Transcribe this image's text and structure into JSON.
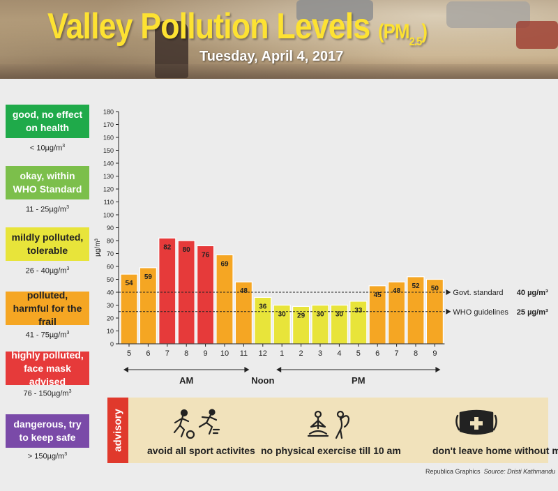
{
  "header": {
    "title": "Valley Pollution Levels",
    "title_pm": "(PM",
    "title_sub": "2.5",
    "title_close": ")",
    "date": "Tuesday, April 4, 2017"
  },
  "legend": [
    {
      "label": "good, no effect on health",
      "range": "< 10µg/m",
      "color": "#1faa4a"
    },
    {
      "label": "okay, within WHO Standard",
      "range": "11 - 25µg/m",
      "color": "#7cbf4b"
    },
    {
      "label": "mildly polluted, tolerable",
      "range": "26 - 40µg/m",
      "color": "#e8e43a"
    },
    {
      "label": "polluted, harmful for the frail",
      "range": "41 - 75µg/m",
      "color": "#f5a623"
    },
    {
      "label": "highly polluted, face mask advised",
      "range": "76 - 150µg/m",
      "color": "#e63a3a"
    },
    {
      "label": "dangerous, try to keep safe",
      "range": "> 150µg/m",
      "color": "#7a4aa8"
    }
  ],
  "legend_unit_sup": "3",
  "chart_data": {
    "type": "bar",
    "categories": [
      "5",
      "6",
      "7",
      "8",
      "9",
      "10",
      "11",
      "12",
      "1",
      "2",
      "3",
      "4",
      "5",
      "6",
      "7",
      "8",
      "9"
    ],
    "values": [
      54,
      59,
      82,
      80,
      76,
      69,
      48,
      36,
      30,
      29,
      30,
      30,
      33,
      45,
      48,
      52,
      50
    ],
    "colors": [
      "#f5a623",
      "#f5a623",
      "#e63a3a",
      "#e63a3a",
      "#e63a3a",
      "#f5a623",
      "#f5a623",
      "#e8e43a",
      "#e8e43a",
      "#e8e43a",
      "#e8e43a",
      "#e8e43a",
      "#e8e43a",
      "#f5a623",
      "#f5a623",
      "#f5a623",
      "#f5a623"
    ],
    "ylabel": "µg/m³",
    "ylim": [
      0,
      180
    ],
    "yticks": [
      0,
      10,
      20,
      30,
      40,
      50,
      60,
      70,
      80,
      90,
      100,
      110,
      120,
      130,
      140,
      150,
      160,
      170,
      180
    ],
    "reference_lines": [
      {
        "value": 40,
        "label": "Govt. standard",
        "value_label": "40 µg/m³"
      },
      {
        "value": 25,
        "label": "WHO guidelines",
        "value_label": "25 µg/m³"
      }
    ],
    "periods": [
      "AM",
      "Noon",
      "PM"
    ]
  },
  "advisory": {
    "label": "advisory",
    "items": [
      {
        "text": "avoid all sport activites",
        "icon": "sport-icon"
      },
      {
        "text": "no physical exercise till 10 am",
        "icon": "exercise-icon"
      },
      {
        "text": "don't leave home without mask",
        "icon": "mask-icon"
      }
    ]
  },
  "credit": {
    "publisher": "Republica Graphics",
    "source": "Source: Dristi Kathmandu"
  }
}
